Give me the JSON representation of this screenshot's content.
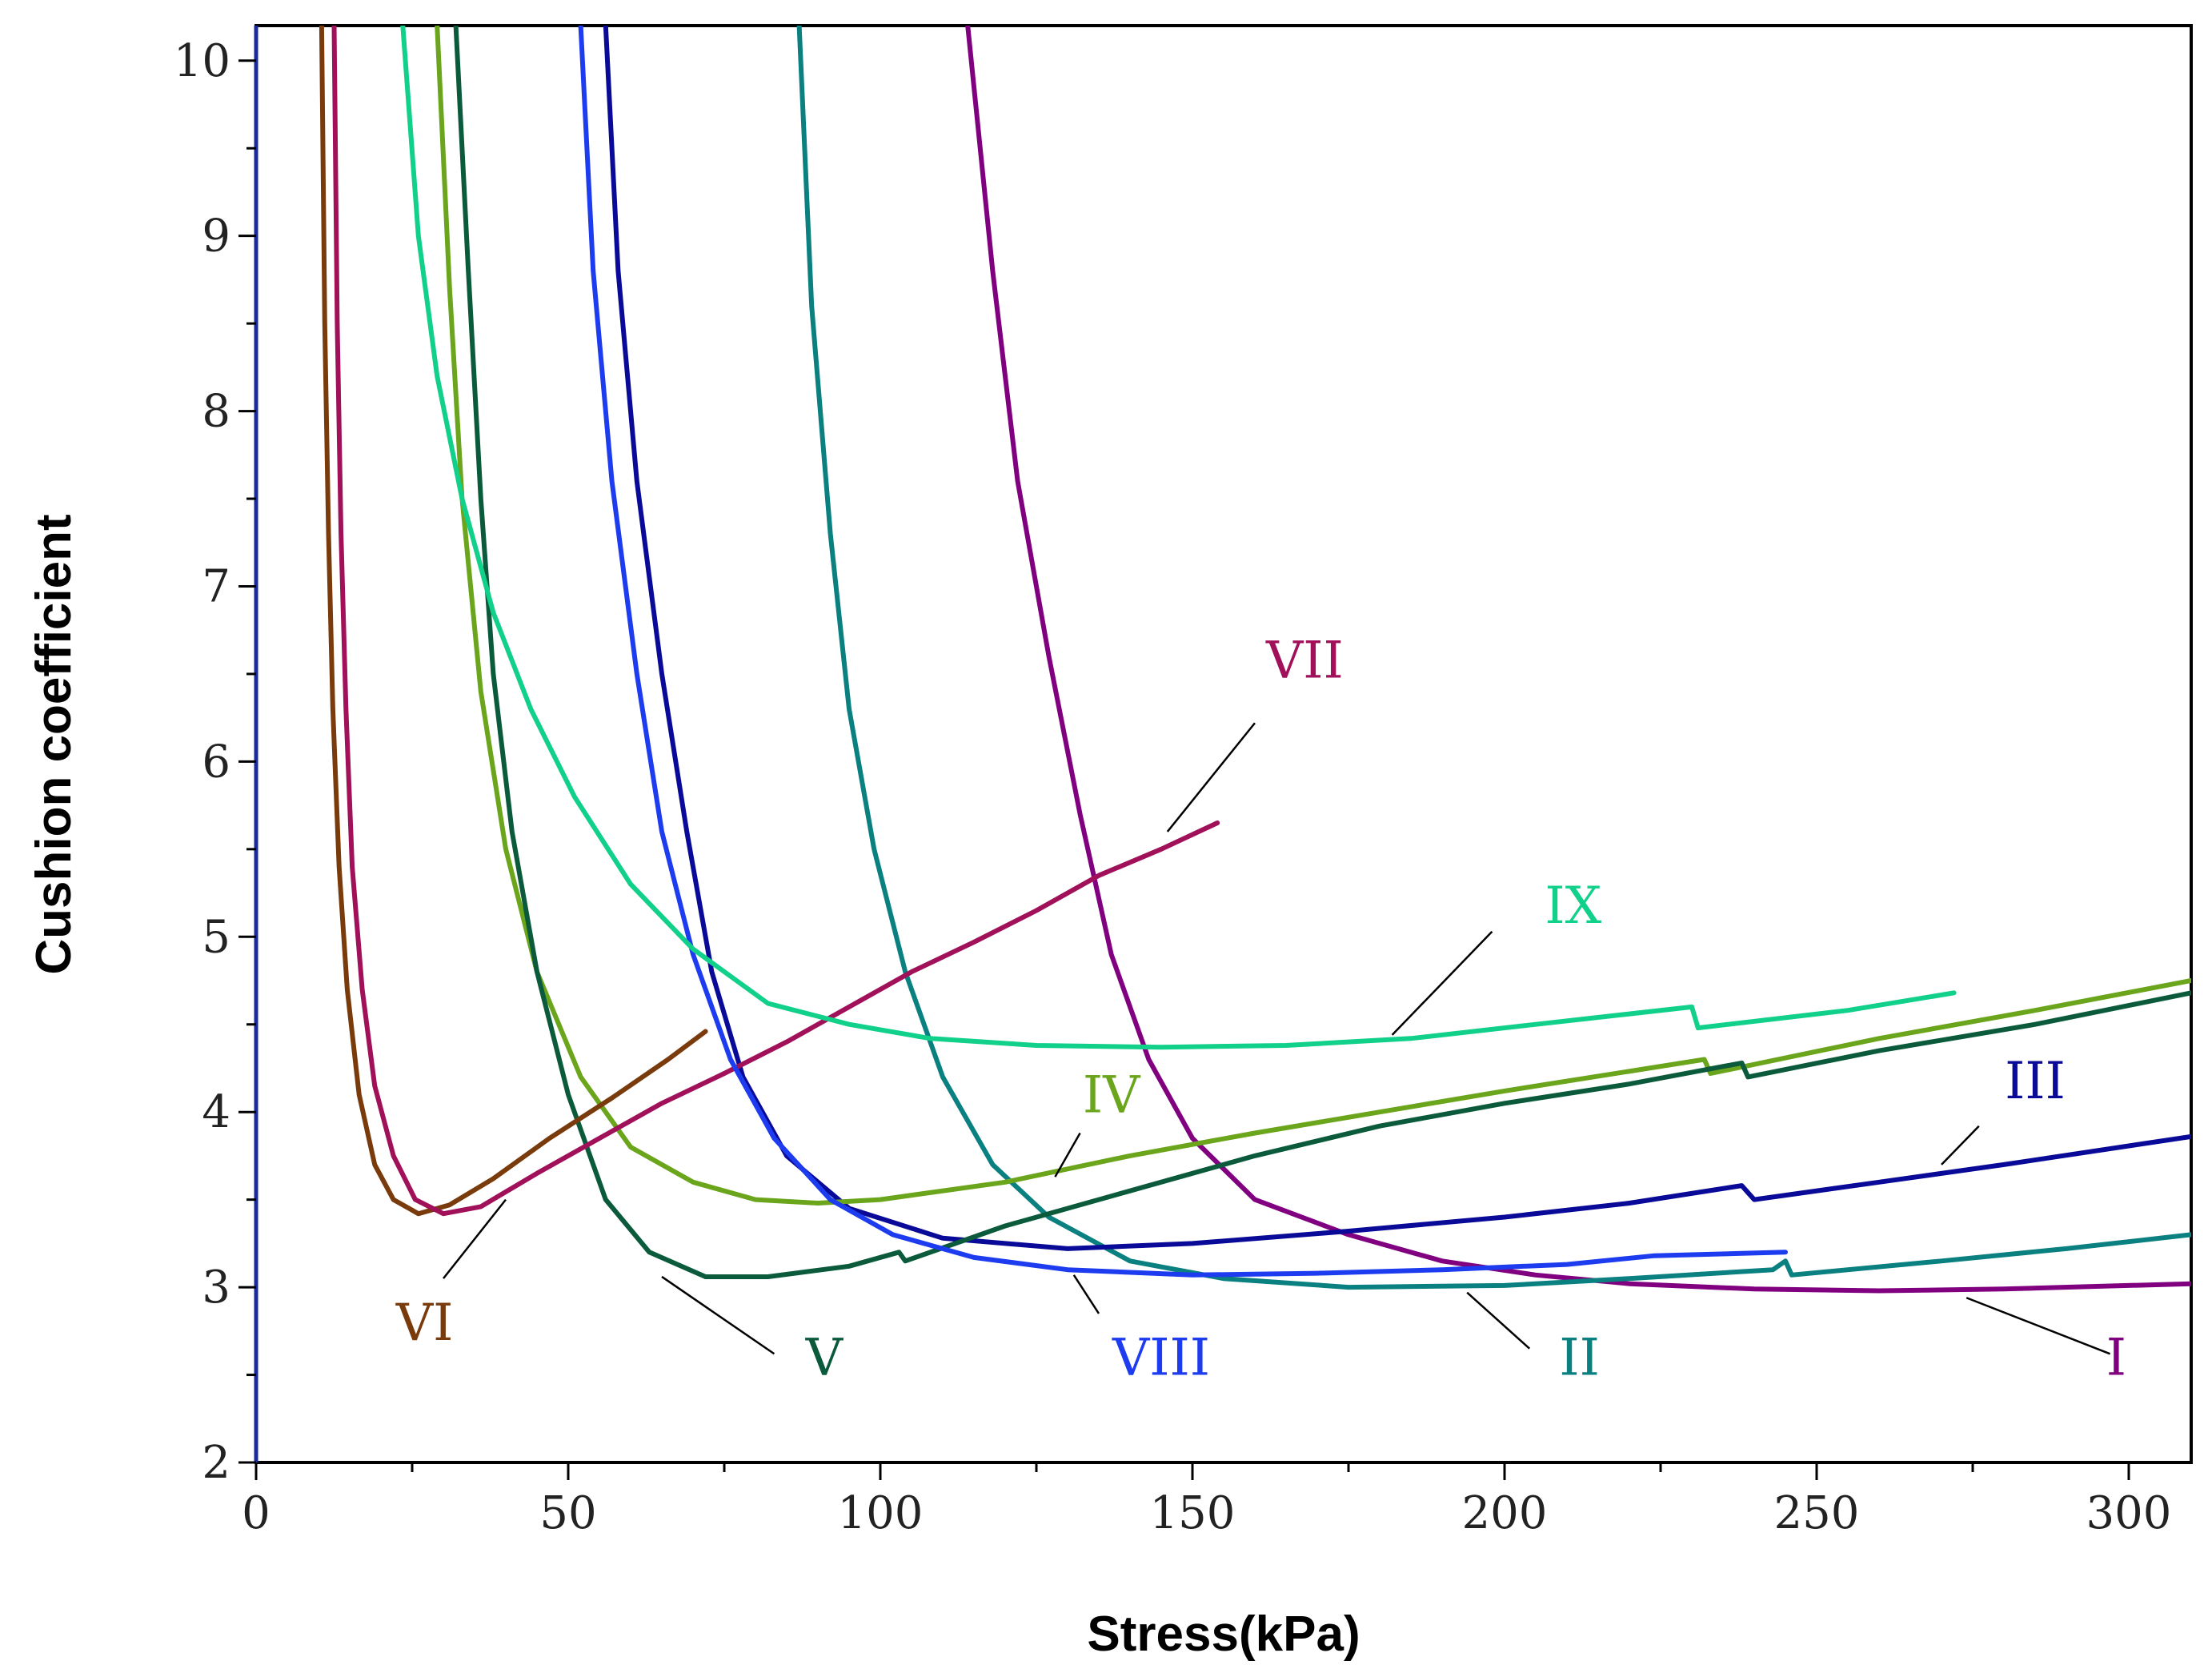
{
  "chart_data": {
    "type": "line",
    "title": "",
    "xlabel": "Stress(kPa)",
    "ylabel": "Cushion coefficient",
    "xlim": [
      0,
      310
    ],
    "ylim": [
      2,
      10.2
    ],
    "xticks": [
      "0",
      "50",
      "100",
      "150",
      "200",
      "250",
      "300"
    ],
    "xtick_values": [
      0,
      50,
      100,
      150,
      200,
      250,
      300
    ],
    "yticks": [
      "2",
      "3",
      "4",
      "5",
      "6",
      "7",
      "8",
      "9",
      "10"
    ],
    "ytick_values": [
      2,
      3,
      4,
      5,
      6,
      7,
      8,
      9,
      10
    ],
    "grid": false,
    "series": [
      {
        "name": "I",
        "color": "#800080",
        "points": [
          [
            114,
            10.2
          ],
          [
            118,
            8.8
          ],
          [
            122,
            7.6
          ],
          [
            127,
            6.6
          ],
          [
            132,
            5.7
          ],
          [
            137,
            4.9
          ],
          [
            143,
            4.3
          ],
          [
            150,
            3.85
          ],
          [
            160,
            3.5
          ],
          [
            175,
            3.3
          ],
          [
            190,
            3.15
          ],
          [
            205,
            3.07
          ],
          [
            220,
            3.02
          ],
          [
            240,
            2.99
          ],
          [
            260,
            2.98
          ],
          [
            280,
            2.99
          ],
          [
            310,
            3.02
          ]
        ],
        "label_pos": [
          298,
          2.6
        ],
        "leader": [
          [
            297,
            2.62
          ],
          [
            274,
            2.94
          ]
        ]
      },
      {
        "name": "II",
        "color": "#0a8080",
        "points": [
          [
            87,
            10.2
          ],
          [
            89,
            8.6
          ],
          [
            92,
            7.3
          ],
          [
            95,
            6.3
          ],
          [
            99,
            5.5
          ],
          [
            104,
            4.8
          ],
          [
            110,
            4.2
          ],
          [
            118,
            3.7
          ],
          [
            127,
            3.4
          ],
          [
            140,
            3.15
          ],
          [
            155,
            3.05
          ],
          [
            175,
            3.0
          ],
          [
            200,
            3.01
          ],
          [
            220,
            3.05
          ],
          [
            243,
            3.1
          ],
          [
            245,
            3.15
          ],
          [
            246,
            3.07
          ],
          [
            270,
            3.15
          ],
          [
            290,
            3.22
          ],
          [
            310,
            3.3
          ]
        ],
        "label_pos": [
          212,
          2.6
        ],
        "leader": [
          [
            204,
            2.65
          ],
          [
            194,
            2.97
          ]
        ]
      },
      {
        "name": "III",
        "color": "#0a0a98",
        "points": [
          [
            56,
            10.2
          ],
          [
            58,
            8.8
          ],
          [
            61,
            7.6
          ],
          [
            65,
            6.5
          ],
          [
            69,
            5.6
          ],
          [
            73,
            4.8
          ],
          [
            78,
            4.2
          ],
          [
            85,
            3.75
          ],
          [
            95,
            3.45
          ],
          [
            110,
            3.28
          ],
          [
            130,
            3.22
          ],
          [
            150,
            3.25
          ],
          [
            175,
            3.32
          ],
          [
            200,
            3.4
          ],
          [
            220,
            3.48
          ],
          [
            238,
            3.58
          ],
          [
            240,
            3.5
          ],
          [
            260,
            3.6
          ],
          [
            280,
            3.7
          ],
          [
            310,
            3.86
          ]
        ],
        "label_pos": [
          285,
          4.18
        ],
        "leader": [
          [
            276,
            3.92
          ],
          [
            270,
            3.7
          ]
        ]
      },
      {
        "name": "IV",
        "color": "#6aa51c",
        "points": [
          [
            29,
            10.2
          ],
          [
            31,
            8.7
          ],
          [
            33,
            7.5
          ],
          [
            36,
            6.4
          ],
          [
            40,
            5.5
          ],
          [
            45,
            4.8
          ],
          [
            52,
            4.2
          ],
          [
            60,
            3.8
          ],
          [
            70,
            3.6
          ],
          [
            80,
            3.5
          ],
          [
            90,
            3.48
          ],
          [
            100,
            3.5
          ],
          [
            120,
            3.6
          ],
          [
            140,
            3.75
          ],
          [
            160,
            3.88
          ],
          [
            180,
            4.0
          ],
          [
            200,
            4.12
          ],
          [
            232,
            4.3
          ],
          [
            233,
            4.22
          ],
          [
            260,
            4.42
          ],
          [
            285,
            4.58
          ],
          [
            310,
            4.75
          ]
        ],
        "label_pos": [
          137,
          4.1
        ],
        "leader": [
          [
            132,
            3.88
          ],
          [
            128,
            3.63
          ]
        ]
      },
      {
        "name": "V",
        "color": "#0b5a3c",
        "points": [
          [
            32,
            10.2
          ],
          [
            34,
            8.8
          ],
          [
            36,
            7.5
          ],
          [
            38,
            6.5
          ],
          [
            41,
            5.6
          ],
          [
            45,
            4.8
          ],
          [
            50,
            4.1
          ],
          [
            56,
            3.5
          ],
          [
            63,
            3.2
          ],
          [
            72,
            3.06
          ],
          [
            82,
            3.06
          ],
          [
            95,
            3.12
          ],
          [
            103,
            3.2
          ],
          [
            104,
            3.15
          ],
          [
            120,
            3.35
          ],
          [
            140,
            3.55
          ],
          [
            160,
            3.75
          ],
          [
            180,
            3.92
          ],
          [
            200,
            4.05
          ],
          [
            220,
            4.16
          ],
          [
            238,
            4.28
          ],
          [
            239,
            4.2
          ],
          [
            260,
            4.35
          ],
          [
            285,
            4.5
          ],
          [
            310,
            4.68
          ]
        ],
        "label_pos": [
          91,
          2.6
        ],
        "leader": [
          [
            83,
            2.62
          ],
          [
            65,
            3.06
          ]
        ]
      },
      {
        "name": "VI",
        "color": "#7a3b0c",
        "points": [
          [
            10.5,
            10.2
          ],
          [
            11,
            8.5
          ],
          [
            11.6,
            7.3
          ],
          [
            12.3,
            6.3
          ],
          [
            13.3,
            5.4
          ],
          [
            14.6,
            4.7
          ],
          [
            16.5,
            4.1
          ],
          [
            19,
            3.7
          ],
          [
            22,
            3.5
          ],
          [
            26,
            3.42
          ],
          [
            31,
            3.47
          ],
          [
            38,
            3.62
          ],
          [
            47,
            3.85
          ],
          [
            57,
            4.08
          ],
          [
            66,
            4.3
          ],
          [
            72,
            4.46
          ]
        ],
        "label_pos": [
          27,
          2.8
        ],
        "leader": [
          [
            30,
            3.05
          ],
          [
            40,
            3.5
          ]
        ]
      },
      {
        "name": "VII",
        "color": "#a0115a",
        "points": [
          [
            12.5,
            10.2
          ],
          [
            13,
            8.5
          ],
          [
            13.6,
            7.3
          ],
          [
            14.4,
            6.3
          ],
          [
            15.4,
            5.4
          ],
          [
            17,
            4.7
          ],
          [
            19,
            4.15
          ],
          [
            22,
            3.75
          ],
          [
            25.5,
            3.5
          ],
          [
            30,
            3.42
          ],
          [
            36,
            3.46
          ],
          [
            45,
            3.65
          ],
          [
            55,
            3.85
          ],
          [
            65,
            4.05
          ],
          [
            75,
            4.22
          ],
          [
            85,
            4.4
          ],
          [
            95,
            4.6
          ],
          [
            105,
            4.8
          ],
          [
            115,
            4.97
          ],
          [
            125,
            5.15
          ],
          [
            135,
            5.35
          ],
          [
            145,
            5.5
          ],
          [
            154,
            5.65
          ]
        ],
        "label_pos": [
          168,
          6.58
        ],
        "leader": [
          [
            160,
            6.22
          ],
          [
            146,
            5.6
          ]
        ]
      },
      {
        "name": "VIII",
        "color": "#1d3cef",
        "points": [
          [
            52,
            10.2
          ],
          [
            54,
            8.8
          ],
          [
            57,
            7.6
          ],
          [
            61,
            6.5
          ],
          [
            65,
            5.6
          ],
          [
            70,
            4.9
          ],
          [
            76,
            4.3
          ],
          [
            83,
            3.85
          ],
          [
            92,
            3.5
          ],
          [
            102,
            3.3
          ],
          [
            115,
            3.17
          ],
          [
            130,
            3.1
          ],
          [
            150,
            3.07
          ],
          [
            170,
            3.08
          ],
          [
            190,
            3.1
          ],
          [
            210,
            3.13
          ],
          [
            224,
            3.18
          ],
          [
            245,
            3.2
          ]
        ],
        "label_pos": [
          145,
          2.6
        ],
        "leader": [
          [
            135,
            2.85
          ],
          [
            131,
            3.07
          ]
        ]
      },
      {
        "name": "IX",
        "color": "#11d08a",
        "points": [
          [
            23.5,
            10.2
          ],
          [
            26,
            9.0
          ],
          [
            29,
            8.2
          ],
          [
            33,
            7.5
          ],
          [
            38,
            6.85
          ],
          [
            44,
            6.3
          ],
          [
            51,
            5.8
          ],
          [
            60,
            5.3
          ],
          [
            70,
            4.93
          ],
          [
            82,
            4.62
          ],
          [
            95,
            4.5
          ],
          [
            108,
            4.42
          ],
          [
            125,
            4.38
          ],
          [
            145,
            4.37
          ],
          [
            165,
            4.38
          ],
          [
            185,
            4.42
          ],
          [
            205,
            4.5
          ],
          [
            230,
            4.6
          ],
          [
            231,
            4.48
          ],
          [
            255,
            4.58
          ],
          [
            272,
            4.68
          ]
        ],
        "label_pos": [
          211,
          5.18
        ],
        "leader": [
          [
            198,
            5.03
          ],
          [
            182,
            4.44
          ]
        ]
      }
    ]
  }
}
